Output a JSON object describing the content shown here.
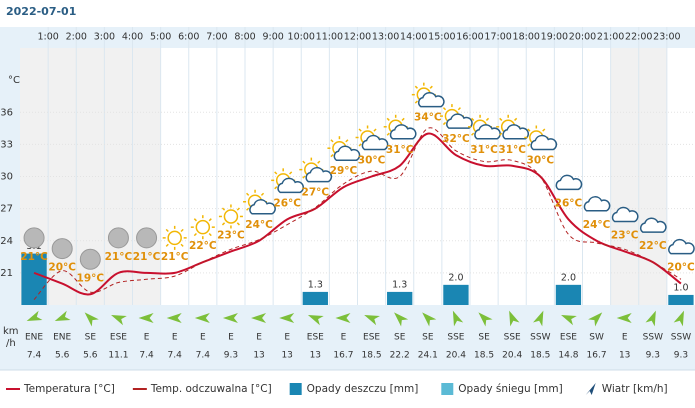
{
  "date": "2022-07-01",
  "hours": [
    null,
    "1:00",
    "2:00",
    "3:00",
    "4:00",
    "5:00",
    "6:00",
    "7:00",
    "8:00",
    "9:00",
    "10:00",
    "11:00",
    "12:00",
    "13:00",
    "14:00",
    "15:00",
    "16:00",
    "17:00",
    "18:00",
    "19:00",
    "20:00",
    "21:00",
    "22:00",
    "23:00"
  ],
  "chart_data": [
    {
      "type": "line",
      "y_unit": "°C",
      "ylim": [
        18,
        42
      ],
      "yticks": [
        21,
        24,
        27,
        30,
        33,
        36
      ],
      "series": [
        {
          "name": "Temperatura [°C]",
          "color": "#c8102e",
          "values": [
            21,
            20,
            19,
            21,
            21,
            21,
            22,
            23,
            24,
            26,
            27,
            29,
            30,
            31,
            34,
            32,
            31,
            31,
            30,
            26,
            24,
            23,
            22,
            20
          ],
          "value_labels": [
            "21°C",
            "20°C",
            "19°C",
            "21°C",
            "21°C",
            "21°C",
            "22°C",
            "23°C",
            "24°C",
            "26°C",
            "27°C",
            "29°C",
            "30°C",
            "31°C",
            "34°C",
            "32°C",
            "31°C",
            "31°C",
            "30°C",
            "26°C",
            "24°C",
            "23°C",
            "22°C",
            "20°C"
          ]
        },
        {
          "name": "Temp. odczuwalna [°C]",
          "color": "#b22222",
          "dashed": true,
          "values": [
            18.5,
            21.2,
            19.2,
            20.1,
            20.4,
            20.7,
            22,
            23.2,
            24.1,
            25.5,
            27.1,
            29.3,
            30.5,
            30,
            34.5,
            32.4,
            31.4,
            31.5,
            30,
            24.6,
            23.8,
            23.2,
            22,
            20.4
          ]
        }
      ]
    },
    {
      "type": "bar",
      "ylim": [
        0,
        25.5
      ],
      "series": [
        {
          "name": "Opady deszczu [mm]",
          "color": "#1a86b3",
          "values": [
            5.1,
            0,
            0,
            0,
            0,
            0,
            0,
            0,
            0,
            0,
            1.3,
            0,
            0,
            1.3,
            0,
            2.0,
            0,
            0,
            0,
            2.0,
            0,
            0,
            0,
            1.0
          ],
          "value_labels": [
            "5.1",
            null,
            null,
            null,
            null,
            null,
            null,
            null,
            null,
            null,
            "1.3",
            null,
            null,
            "1.3",
            null,
            "2.0",
            null,
            null,
            null,
            "2.0",
            null,
            null,
            null,
            "1.0"
          ]
        },
        {
          "name": "Opady śniegu [mm]",
          "color": "#5bbad5",
          "values": [
            0,
            0,
            0,
            0,
            0,
            0,
            0,
            0,
            0,
            0,
            0,
            0,
            0,
            0,
            0,
            0,
            0,
            0,
            0,
            0,
            0,
            0,
            0,
            0
          ]
        }
      ]
    }
  ],
  "wind": {
    "name": "Wiatr [km/h]",
    "unit_top": "km",
    "unit_bottom": "/h",
    "directions": [
      "ENE",
      "ENE",
      "SE",
      "ESE",
      "E",
      "E",
      "E",
      "E",
      "E",
      "E",
      "ESE",
      "E",
      "ESE",
      "SE",
      "SE",
      "SSE",
      "SE",
      "SSE",
      "SSW",
      "ESE",
      "SW",
      "E",
      "SSW",
      "SSW"
    ],
    "speeds": [
      "7.4",
      "5.6",
      "5.6",
      "11.1",
      "7.4",
      "7.4",
      "7.4",
      "9.3",
      "13",
      "13",
      "13",
      "16.7",
      "18.5",
      "22.2",
      "24.1",
      "20.4",
      "18.5",
      "20.4",
      "18.5",
      "14.8",
      "16.7",
      "13",
      "9.3",
      "9.3"
    ]
  }
}
